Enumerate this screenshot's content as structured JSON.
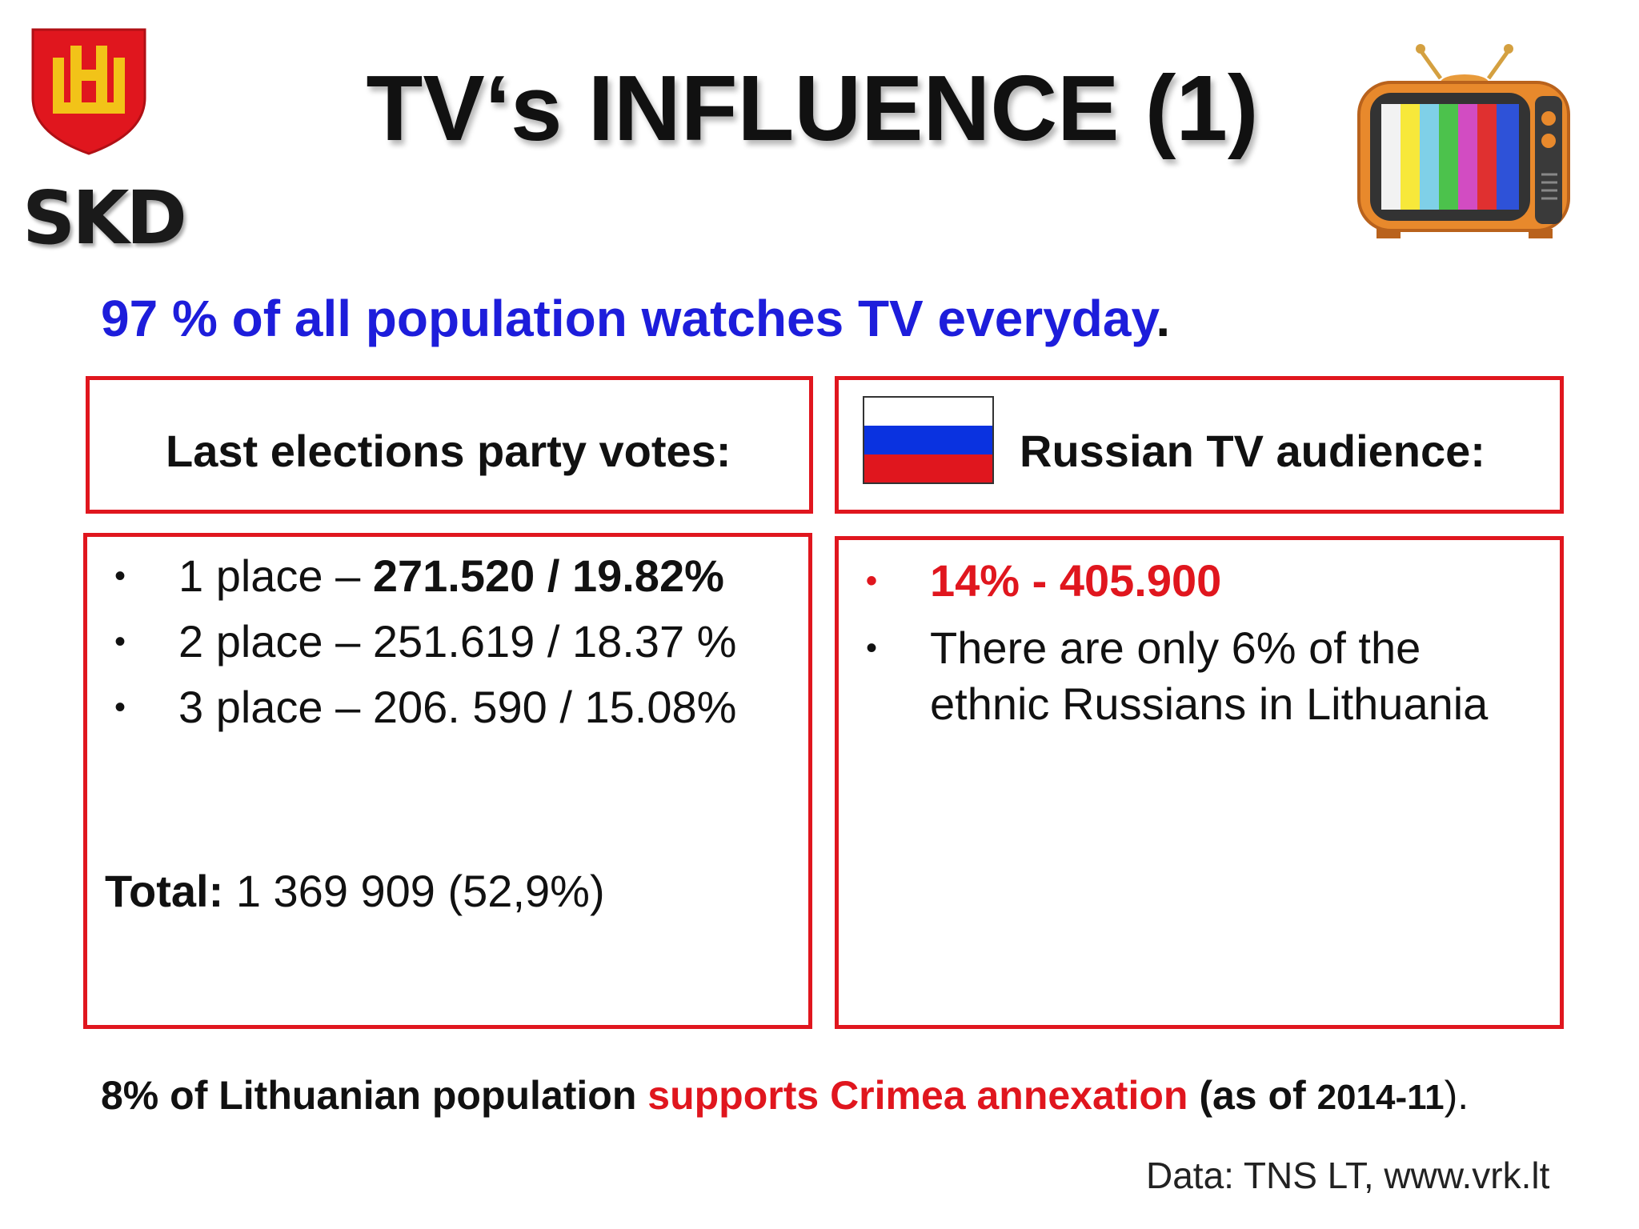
{
  "logo": {
    "text": "SKD",
    "colors": {
      "shield": "#e0161e",
      "emblem": "#f2c318"
    }
  },
  "title": "TV‘s INFLUENCE (1)",
  "tv_icon": "retro-tv-icon",
  "headline": {
    "text": "97 % of all population watches TV everyday",
    "period": ".",
    "color": "#1d1ddb"
  },
  "elections": {
    "heading": "Last elections party votes:",
    "items": [
      {
        "prefix": "1 place – ",
        "value": "271.520 / 19.82%",
        "bold": true
      },
      {
        "prefix": "2 place – ",
        "value": "251.619 / 18.37 %",
        "bold": false
      },
      {
        "prefix": "3 place – ",
        "value": "206. 590 / 15.08%",
        "bold": false
      }
    ],
    "total_label": "Total:",
    "total_value": " 1 369 909 (52,9%)"
  },
  "russian_tv": {
    "heading": "Russian TV audience:",
    "flag_colors": [
      "#ffffff",
      "#0a32e0",
      "#e0161e"
    ],
    "items": [
      "14% - 405.900",
      "There are only 6% of the ethnic Russians in Lithuania"
    ]
  },
  "footnote": {
    "part1": "8% of Lithuanian population ",
    "part2": "supports Crimea annexation",
    "part3": " (as of ",
    "date": "2014-11",
    "part4": ")."
  },
  "source": "Data: TNS LT, www.vrk.lt",
  "colors": {
    "accent_red": "#e0161e",
    "accent_blue": "#1d1ddb"
  }
}
